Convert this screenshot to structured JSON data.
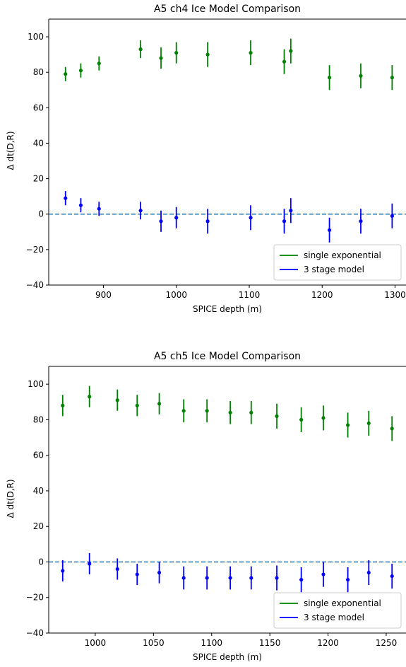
{
  "chart_data": [
    {
      "type": "scatter",
      "title": "A5 ch4 Ice Model Comparison",
      "xlabel": "SPICE depth (m)",
      "ylabel": "Δ dt(D,R)",
      "xlim": [
        825,
        1315
      ],
      "ylim": [
        -40,
        110
      ],
      "xticks": [
        900,
        1000,
        1100,
        1200,
        1300
      ],
      "xtick_labels": [
        "900",
        "1000",
        "1100",
        "1200",
        "1300"
      ],
      "yticks": [
        -40,
        -20,
        0,
        20,
        40,
        60,
        80,
        100
      ],
      "ytick_labels": [
        "−40",
        "−20",
        "0",
        "20",
        "40",
        "60",
        "80",
        "100"
      ],
      "grid": false,
      "legend_position": "lower-right",
      "reference_line": {
        "y": 0,
        "style": "dashed",
        "color": "#1f77b4"
      },
      "series": [
        {
          "name": "single exponential",
          "color": "#008000",
          "points": [
            {
              "x": 848,
              "y": 79,
              "err": 4
            },
            {
              "x": 869,
              "y": 81,
              "err": 4
            },
            {
              "x": 894,
              "y": 85,
              "err": 4
            },
            {
              "x": 951,
              "y": 93,
              "err": 5
            },
            {
              "x": 979,
              "y": 88,
              "err": 6
            },
            {
              "x": 1000,
              "y": 91,
              "err": 6
            },
            {
              "x": 1043,
              "y": 90,
              "err": 7
            },
            {
              "x": 1102,
              "y": 91,
              "err": 7
            },
            {
              "x": 1148,
              "y": 86,
              "err": 7
            },
            {
              "x": 1157,
              "y": 92,
              "err": 7
            },
            {
              "x": 1210,
              "y": 77,
              "err": 7
            },
            {
              "x": 1253,
              "y": 78,
              "err": 7
            },
            {
              "x": 1296,
              "y": 77,
              "err": 7
            }
          ]
        },
        {
          "name": "3 stage model",
          "color": "#0000ff",
          "points": [
            {
              "x": 848,
              "y": 9,
              "err": 4
            },
            {
              "x": 869,
              "y": 5,
              "err": 4
            },
            {
              "x": 894,
              "y": 3,
              "err": 4
            },
            {
              "x": 951,
              "y": 2,
              "err": 5
            },
            {
              "x": 979,
              "y": -4,
              "err": 6
            },
            {
              "x": 1000,
              "y": -2,
              "err": 6
            },
            {
              "x": 1043,
              "y": -4,
              "err": 7
            },
            {
              "x": 1102,
              "y": -2,
              "err": 7
            },
            {
              "x": 1148,
              "y": -4,
              "err": 7
            },
            {
              "x": 1157,
              "y": 2,
              "err": 7
            },
            {
              "x": 1210,
              "y": -9,
              "err": 7
            },
            {
              "x": 1253,
              "y": -4,
              "err": 7
            },
            {
              "x": 1296,
              "y": -1,
              "err": 7
            }
          ]
        }
      ]
    },
    {
      "type": "scatter",
      "title": "A5 ch5 Ice Model Comparison",
      "xlabel": "SPICE depth (m)",
      "ylabel": "Δ dt(D,R)",
      "xlim": [
        960,
        1267
      ],
      "ylim": [
        -40,
        110
      ],
      "xticks": [
        1000,
        1050,
        1100,
        1150,
        1200,
        1250
      ],
      "xtick_labels": [
        "1000",
        "1050",
        "1100",
        "1150",
        "1200",
        "1250"
      ],
      "yticks": [
        -40,
        -20,
        0,
        20,
        40,
        60,
        80,
        100
      ],
      "ytick_labels": [
        "−40",
        "−20",
        "0",
        "20",
        "40",
        "60",
        "80",
        "100"
      ],
      "grid": false,
      "legend_position": "lower-right",
      "reference_line": {
        "y": 0,
        "style": "dashed",
        "color": "#1f77b4"
      },
      "series": [
        {
          "name": "single exponential",
          "color": "#008000",
          "points": [
            {
              "x": 972,
              "y": 88,
              "err": 6
            },
            {
              "x": 995,
              "y": 93,
              "err": 6
            },
            {
              "x": 1019,
              "y": 91,
              "err": 6
            },
            {
              "x": 1036,
              "y": 88,
              "err": 6
            },
            {
              "x": 1055,
              "y": 89,
              "err": 6
            },
            {
              "x": 1076,
              "y": 85,
              "err": 6.5
            },
            {
              "x": 1096,
              "y": 85,
              "err": 6.5
            },
            {
              "x": 1116,
              "y": 84,
              "err": 6.5
            },
            {
              "x": 1134,
              "y": 84,
              "err": 6.5
            },
            {
              "x": 1156,
              "y": 82,
              "err": 7
            },
            {
              "x": 1177,
              "y": 80,
              "err": 7
            },
            {
              "x": 1196,
              "y": 81,
              "err": 7
            },
            {
              "x": 1217,
              "y": 77,
              "err": 7
            },
            {
              "x": 1235,
              "y": 78,
              "err": 7
            },
            {
              "x": 1255,
              "y": 75,
              "err": 7
            }
          ]
        },
        {
          "name": "3 stage model",
          "color": "#0000ff",
          "points": [
            {
              "x": 972,
              "y": -5,
              "err": 6
            },
            {
              "x": 995,
              "y": -1,
              "err": 6
            },
            {
              "x": 1019,
              "y": -4,
              "err": 6
            },
            {
              "x": 1036,
              "y": -7,
              "err": 6
            },
            {
              "x": 1055,
              "y": -6,
              "err": 6
            },
            {
              "x": 1076,
              "y": -9,
              "err": 6.5
            },
            {
              "x": 1096,
              "y": -9,
              "err": 6.5
            },
            {
              "x": 1116,
              "y": -9,
              "err": 6.5
            },
            {
              "x": 1134,
              "y": -9,
              "err": 6.5
            },
            {
              "x": 1156,
              "y": -9,
              "err": 7
            },
            {
              "x": 1177,
              "y": -10,
              "err": 7
            },
            {
              "x": 1196,
              "y": -7,
              "err": 7
            },
            {
              "x": 1217,
              "y": -10,
              "err": 7
            },
            {
              "x": 1235,
              "y": -6,
              "err": 7
            },
            {
              "x": 1255,
              "y": -8,
              "err": 7
            }
          ]
        }
      ]
    }
  ]
}
